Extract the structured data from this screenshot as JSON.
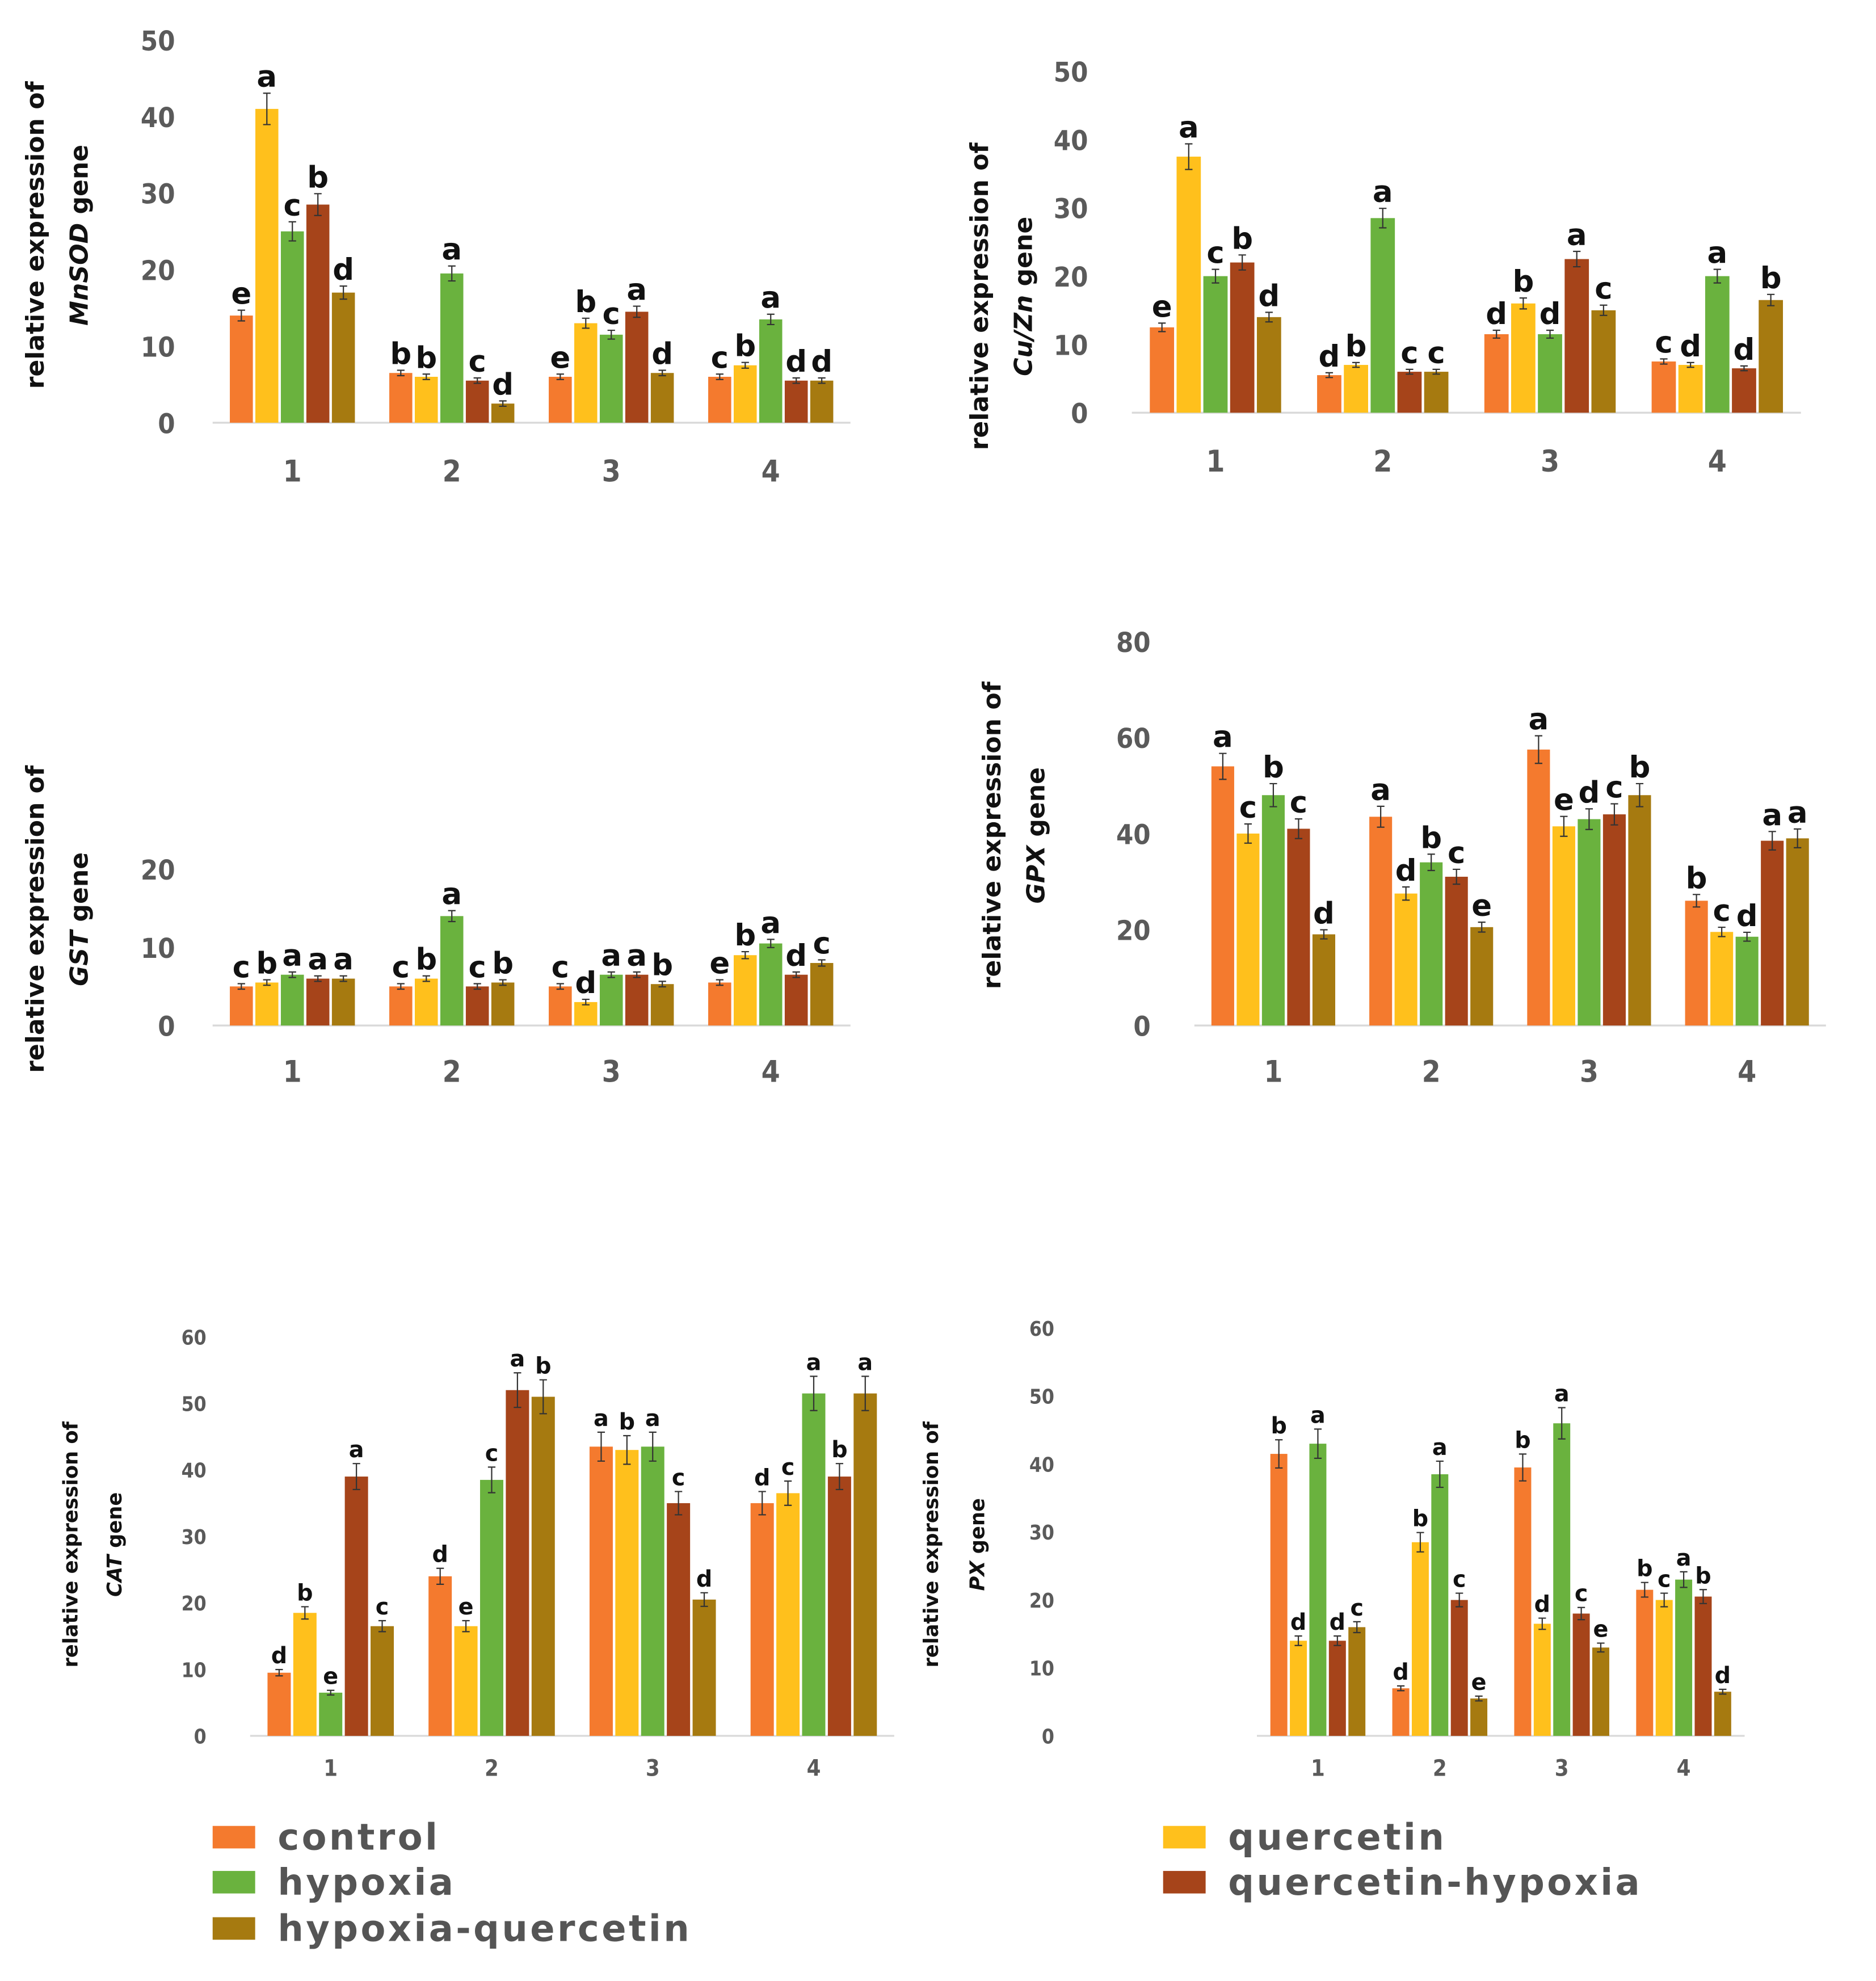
{
  "series_colors": {
    "control": "#F47A2E",
    "quercetin": "#FFC01C",
    "hypoxia": "#6AB23E",
    "quercetin-hypoxia": "#A6441A",
    "hypoxia-quercetin": "#A67A10"
  },
  "legend": [
    "control",
    "quercetin",
    "hypoxia",
    "quercetin-hypoxia",
    "hypoxia-quercetin"
  ],
  "chart_data": [
    {
      "type": "bar",
      "ylabel_line1": "relative expression of",
      "gene": "MnSOD",
      "gene_suffix": " gene",
      "categories": [
        "1",
        "2",
        "3",
        "4"
      ],
      "ylim": [
        0,
        50
      ],
      "yticks": [
        "0",
        "10",
        "20",
        "30",
        "40",
        "50"
      ],
      "series": [
        {
          "name": "control",
          "values": [
            14,
            6.5,
            6,
            6
          ],
          "letters": [
            "e",
            "b",
            "e",
            "c"
          ]
        },
        {
          "name": "quercetin",
          "values": [
            41,
            6,
            13,
            7.5
          ],
          "letters": [
            "a",
            "b",
            "b",
            "b"
          ]
        },
        {
          "name": "hypoxia",
          "values": [
            25,
            19.5,
            11.5,
            13.5
          ],
          "letters": [
            "c",
            "a",
            "c",
            "a"
          ]
        },
        {
          "name": "quercetin-hypoxia",
          "values": [
            28.5,
            5.5,
            14.5,
            5.5
          ],
          "letters": [
            "b",
            "c",
            "a",
            "d"
          ]
        },
        {
          "name": "hypoxia-quercetin",
          "values": [
            17,
            2.5,
            6.5,
            5.5
          ],
          "letters": [
            "d",
            "d",
            "d",
            "d"
          ]
        }
      ]
    },
    {
      "type": "bar",
      "ylabel_line1": "relative expression of",
      "gene": "Cu/Zn",
      "gene_suffix": " gene",
      "categories": [
        "1",
        "2",
        "3",
        "4"
      ],
      "ylim": [
        0,
        50
      ],
      "yticks": [
        "0",
        "10",
        "20",
        "30",
        "40",
        "50"
      ],
      "series": [
        {
          "name": "control",
          "values": [
            12.5,
            5.5,
            11.5,
            7.5
          ],
          "letters": [
            "e",
            "d",
            "d",
            "c"
          ]
        },
        {
          "name": "quercetin",
          "values": [
            37.5,
            7,
            16,
            7
          ],
          "letters": [
            "a",
            "b",
            "b",
            "d"
          ]
        },
        {
          "name": "hypoxia",
          "values": [
            20,
            28.5,
            11.5,
            20
          ],
          "letters": [
            "c",
            "a",
            "d",
            "a"
          ]
        },
        {
          "name": "quercetin-hypoxia",
          "values": [
            22,
            6,
            22.5,
            6.5
          ],
          "letters": [
            "b",
            "c",
            "a",
            "d"
          ]
        },
        {
          "name": "hypoxia-quercetin",
          "values": [
            14,
            6,
            15,
            16.5
          ],
          "letters": [
            "d",
            "c",
            "c",
            "b"
          ]
        }
      ]
    },
    {
      "type": "bar",
      "ylabel_line1": "relative expression of",
      "gene": "GST",
      "gene_suffix": " gene",
      "categories": [
        "1",
        "2",
        "3",
        "4"
      ],
      "ylim": [
        0,
        20
      ],
      "yticks": [
        "0",
        "10",
        "20"
      ],
      "series": [
        {
          "name": "control",
          "values": [
            5,
            5,
            5,
            5.5
          ],
          "letters": [
            "c",
            "c",
            "c",
            "e"
          ]
        },
        {
          "name": "quercetin",
          "values": [
            5.5,
            6,
            3,
            9
          ],
          "letters": [
            "b",
            "b",
            "d",
            "b"
          ]
        },
        {
          "name": "hypoxia",
          "values": [
            6.5,
            14,
            6.5,
            10.5
          ],
          "letters": [
            "a",
            "a",
            "a",
            "a"
          ]
        },
        {
          "name": "quercetin-hypoxia",
          "values": [
            6,
            5,
            6.5,
            6.5
          ],
          "letters": [
            "a",
            "c",
            "a",
            "d"
          ]
        },
        {
          "name": "hypoxia-quercetin",
          "values": [
            6,
            5.5,
            5.3,
            8
          ],
          "letters": [
            "a",
            "b",
            "b",
            "c"
          ]
        }
      ]
    },
    {
      "type": "bar",
      "ylabel_line1": "relative expression of",
      "gene": "GPX",
      "gene_suffix": " gene",
      "categories": [
        "1",
        "2",
        "3",
        "4"
      ],
      "ylim": [
        0,
        80
      ],
      "yticks": [
        "0",
        "20",
        "40",
        "60",
        "80"
      ],
      "series": [
        {
          "name": "control",
          "values": [
            54,
            43.5,
            57.5,
            26
          ],
          "letters": [
            "a",
            "a",
            "a",
            "b"
          ]
        },
        {
          "name": "quercetin",
          "values": [
            40,
            27.5,
            41.5,
            19.5
          ],
          "letters": [
            "c",
            "d",
            "e",
            "c"
          ]
        },
        {
          "name": "hypoxia",
          "values": [
            48,
            34,
            43,
            18.5
          ],
          "letters": [
            "b",
            "b",
            "d",
            "d"
          ]
        },
        {
          "name": "quercetin-hypoxia",
          "values": [
            41,
            31,
            44,
            38.5
          ],
          "letters": [
            "c",
            "c",
            "c",
            "a"
          ]
        },
        {
          "name": "hypoxia-quercetin",
          "values": [
            19,
            20.5,
            48,
            39
          ],
          "letters": [
            "d",
            "e",
            "b",
            "a"
          ]
        }
      ]
    },
    {
      "type": "bar",
      "ylabel_line1": "relative expression of",
      "gene": "CAT",
      "gene_suffix": " gene",
      "categories": [
        "1",
        "2",
        "3",
        "4"
      ],
      "ylim": [
        0,
        60
      ],
      "yticks": [
        "0",
        "10",
        "20",
        "30",
        "40",
        "50",
        "60"
      ],
      "series": [
        {
          "name": "control",
          "values": [
            9.5,
            24,
            43.5,
            35
          ],
          "letters": [
            "d",
            "d",
            "a",
            "d"
          ]
        },
        {
          "name": "quercetin",
          "values": [
            18.5,
            16.5,
            43,
            36.5
          ],
          "letters": [
            "b",
            "e",
            "b",
            "c"
          ]
        },
        {
          "name": "hypoxia",
          "values": [
            6.5,
            38.5,
            43.5,
            51.5
          ],
          "letters": [
            "e",
            "c",
            "a",
            "a"
          ]
        },
        {
          "name": "quercetin-hypoxia",
          "values": [
            39,
            52,
            35,
            39
          ],
          "letters": [
            "a",
            "a",
            "c",
            "b"
          ]
        },
        {
          "name": "hypoxia-quercetin",
          "values": [
            16.5,
            51,
            20.5,
            51.5
          ],
          "letters": [
            "c",
            "b",
            "d",
            "a"
          ]
        }
      ]
    },
    {
      "type": "bar",
      "ylabel_line1": "relative expression of",
      "gene": "PX",
      "gene_suffix": " gene",
      "categories": [
        "1",
        "2",
        "3",
        "4"
      ],
      "ylim": [
        0,
        60
      ],
      "yticks": [
        "0",
        "10",
        "20",
        "30",
        "40",
        "50",
        "60"
      ],
      "series": [
        {
          "name": "control",
          "values": [
            41.5,
            7,
            39.5,
            21.5
          ],
          "letters": [
            "b",
            "d",
            "b",
            "b"
          ]
        },
        {
          "name": "quercetin",
          "values": [
            14,
            28.5,
            16.5,
            20
          ],
          "letters": [
            "d",
            "b",
            "d",
            "c"
          ]
        },
        {
          "name": "hypoxia",
          "values": [
            43,
            38.5,
            46,
            23
          ],
          "letters": [
            "a",
            "a",
            "a",
            "a"
          ]
        },
        {
          "name": "quercetin-hypoxia",
          "values": [
            14,
            20,
            18,
            20.5
          ],
          "letters": [
            "d",
            "c",
            "c",
            "b"
          ]
        },
        {
          "name": "hypoxia-quercetin",
          "values": [
            16,
            5.5,
            13,
            6.5
          ],
          "letters": [
            "c",
            "e",
            "e",
            "d"
          ]
        }
      ]
    }
  ]
}
